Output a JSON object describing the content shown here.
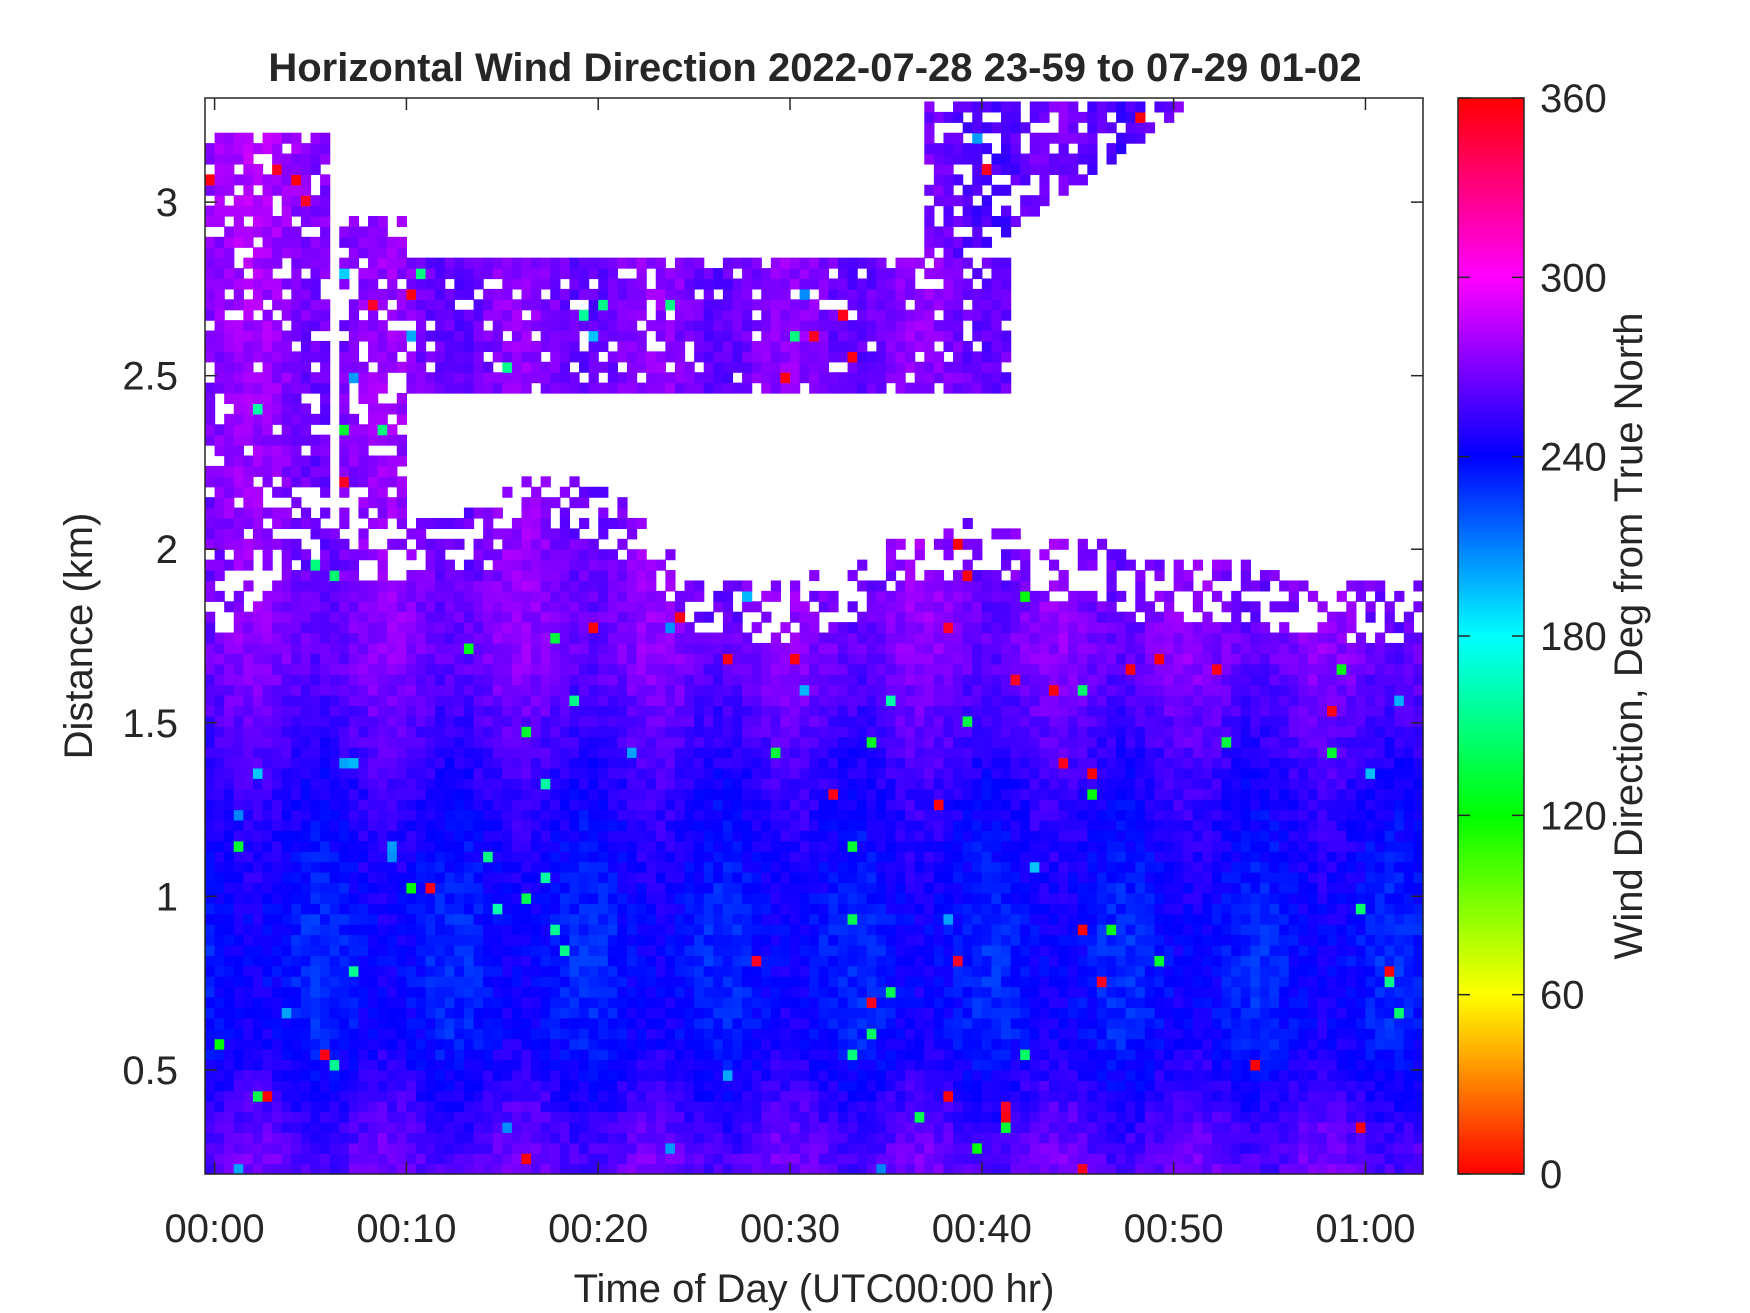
{
  "chart_data": {
    "type": "heatmap",
    "title": "Horizontal Wind Direction 2022-07-28 23-59 to 07-29 01-02",
    "xlabel": "Time of Day (UTC00:00 hr)",
    "ylabel": "Distance (km)",
    "colorbar_label": "Wind Direction, Deg from True North",
    "colormap": "hsv",
    "xlim": [
      -0.5,
      63
    ],
    "ylim": [
      0.2,
      3.3
    ],
    "clim": [
      0,
      360
    ],
    "x_unit": "minutes after 00:00",
    "x_ticks": [
      0,
      10,
      20,
      30,
      40,
      50,
      60
    ],
    "x_tick_labels": [
      "00:00",
      "00:10",
      "00:20",
      "00:30",
      "00:40",
      "00:50",
      "01:00"
    ],
    "y_ticks": [
      0.5,
      1,
      1.5,
      2,
      2.5,
      3
    ],
    "y_tick_labels": [
      "0.5",
      "1",
      "1.5",
      "2",
      "2.5",
      "3"
    ],
    "colorbar_ticks": [
      0,
      60,
      120,
      180,
      240,
      300,
      360
    ],
    "colorbar_tick_labels": [
      "0",
      "60",
      "120",
      "180",
      "240",
      "300",
      "360"
    ],
    "data_top_boundary_km": [
      [
        0,
        1.8
      ],
      [
        2,
        1.9
      ],
      [
        4,
        2.0
      ],
      [
        6,
        2.05
      ],
      [
        8,
        1.95
      ],
      [
        10,
        1.98
      ],
      [
        12,
        1.98
      ],
      [
        14,
        2.0
      ],
      [
        16,
        2.1
      ],
      [
        18,
        2.1
      ],
      [
        20,
        2.05
      ],
      [
        22,
        2.0
      ],
      [
        24,
        1.85
      ],
      [
        26,
        1.8
      ],
      [
        28,
        1.78
      ],
      [
        30,
        1.8
      ],
      [
        32,
        1.82
      ],
      [
        34,
        1.85
      ],
      [
        36,
        1.95
      ],
      [
        38,
        1.95
      ],
      [
        40,
        2.0
      ],
      [
        42,
        1.95
      ],
      [
        44,
        1.9
      ],
      [
        46,
        1.9
      ],
      [
        48,
        1.85
      ],
      [
        50,
        1.85
      ],
      [
        52,
        1.85
      ],
      [
        54,
        1.85
      ],
      [
        56,
        1.8
      ],
      [
        58,
        1.8
      ],
      [
        60,
        1.78
      ],
      [
        62,
        1.8
      ],
      [
        63,
        1.8
      ]
    ],
    "upper_layer": {
      "range_km": [
        2.45,
        2.85
      ],
      "span_minutes": [
        10,
        41
      ],
      "direction_deg": 268
    },
    "left_column_top_km": 3.2,
    "upper_right_band": {
      "span_minutes": [
        37,
        51
      ],
      "top_km": 3.3,
      "direction_deg": 262
    },
    "direction_profile": [
      {
        "height_km": 0.25,
        "direction_deg": 262
      },
      {
        "height_km": 0.6,
        "direction_deg": 238
      },
      {
        "height_km": 0.9,
        "direction_deg": 236
      },
      {
        "height_km": 1.3,
        "direction_deg": 248
      },
      {
        "height_km": 1.7,
        "direction_deg": 268
      },
      {
        "height_km": 2.6,
        "direction_deg": 272
      },
      {
        "height_km": 3.2,
        "direction_deg": 278
      }
    ]
  }
}
